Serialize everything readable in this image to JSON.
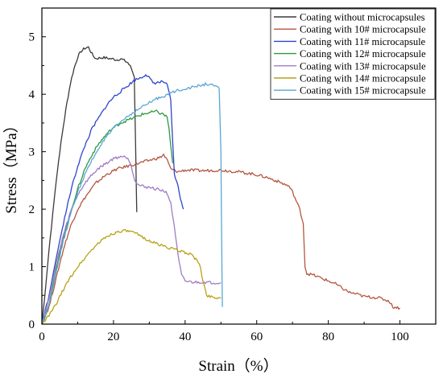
{
  "chart_data": {
    "type": "line",
    "title": "",
    "xlabel": "Strain（%）",
    "ylabel": "Stress（MPa）",
    "xlim": [
      0,
      110
    ],
    "ylim": [
      0,
      5.5
    ],
    "xticks": [
      "0",
      "20",
      "40",
      "60",
      "80",
      "100"
    ],
    "yticks": [
      "0",
      "1",
      "2",
      "3",
      "4",
      "5"
    ],
    "legend_position": "top-right",
    "grid": false,
    "series": [
      {
        "name": "Coating without microcapsules",
        "color": "#3a3a3a",
        "points": [
          [
            0,
            0
          ],
          [
            1,
            0.6
          ],
          [
            2,
            1.3
          ],
          [
            3,
            1.9
          ],
          [
            4,
            2.5
          ],
          [
            5,
            3.0
          ],
          [
            6,
            3.45
          ],
          [
            7,
            3.85
          ],
          [
            8,
            4.2
          ],
          [
            9,
            4.45
          ],
          [
            10,
            4.65
          ],
          [
            11,
            4.75
          ],
          [
            12,
            4.8
          ],
          [
            13,
            4.82
          ],
          [
            14,
            4.7
          ],
          [
            15,
            4.62
          ],
          [
            17,
            4.64
          ],
          [
            19,
            4.62
          ],
          [
            21,
            4.6
          ],
          [
            22,
            4.62
          ],
          [
            24,
            4.55
          ],
          [
            25,
            4.45
          ],
          [
            25.8,
            4.3
          ],
          [
            26.2,
            3.0
          ],
          [
            26.5,
            1.95
          ]
        ]
      },
      {
        "name": "Coating with 10# microcapsule",
        "color": "#b5563e",
        "points": [
          [
            0,
            0
          ],
          [
            2,
            0.3
          ],
          [
            4,
            0.8
          ],
          [
            6,
            1.3
          ],
          [
            8,
            1.7
          ],
          [
            10,
            2.0
          ],
          [
            12,
            2.2
          ],
          [
            15,
            2.45
          ],
          [
            18,
            2.6
          ],
          [
            21,
            2.7
          ],
          [
            24,
            2.75
          ],
          [
            27,
            2.8
          ],
          [
            30,
            2.85
          ],
          [
            33,
            2.9
          ],
          [
            34,
            2.95
          ],
          [
            35,
            2.85
          ],
          [
            36,
            2.7
          ],
          [
            38,
            2.65
          ],
          [
            40,
            2.68
          ],
          [
            45,
            2.67
          ],
          [
            50,
            2.68
          ],
          [
            55,
            2.65
          ],
          [
            60,
            2.6
          ],
          [
            63,
            2.55
          ],
          [
            66,
            2.48
          ],
          [
            69,
            2.4
          ],
          [
            70,
            2.3
          ],
          [
            72,
            2.0
          ],
          [
            73,
            1.75
          ],
          [
            73.5,
            1.0
          ],
          [
            74,
            0.88
          ],
          [
            76,
            0.85
          ],
          [
            78,
            0.8
          ],
          [
            80,
            0.75
          ],
          [
            82,
            0.7
          ],
          [
            84,
            0.62
          ],
          [
            86,
            0.55
          ],
          [
            88,
            0.52
          ],
          [
            90,
            0.48
          ],
          [
            94,
            0.46
          ],
          [
            97,
            0.4
          ],
          [
            98,
            0.3
          ],
          [
            100,
            0.28
          ]
        ]
      },
      {
        "name": "Coating with 11# microcapsule",
        "color": "#2f45cc",
        "points": [
          [
            0,
            0
          ],
          [
            2,
            0.5
          ],
          [
            4,
            1.15
          ],
          [
            6,
            1.75
          ],
          [
            8,
            2.3
          ],
          [
            10,
            2.75
          ],
          [
            12,
            3.1
          ],
          [
            14,
            3.4
          ],
          [
            16,
            3.6
          ],
          [
            18,
            3.8
          ],
          [
            20,
            3.95
          ],
          [
            22,
            4.05
          ],
          [
            24,
            4.15
          ],
          [
            26,
            4.25
          ],
          [
            28,
            4.3
          ],
          [
            29,
            4.35
          ],
          [
            30,
            4.28
          ],
          [
            31,
            4.2
          ],
          [
            32,
            4.2
          ],
          [
            34,
            4.22
          ],
          [
            35,
            4.15
          ],
          [
            36,
            3.9
          ],
          [
            36.5,
            3.2
          ],
          [
            37,
            2.6
          ],
          [
            38,
            2.4
          ],
          [
            39,
            2.1
          ],
          [
            39.5,
            2.0
          ]
        ]
      },
      {
        "name": "Coating with 12# microcapsule",
        "color": "#2d9a3d",
        "points": [
          [
            0,
            0
          ],
          [
            2,
            0.35
          ],
          [
            4,
            0.95
          ],
          [
            6,
            1.5
          ],
          [
            8,
            1.95
          ],
          [
            10,
            2.35
          ],
          [
            12,
            2.7
          ],
          [
            14,
            2.95
          ],
          [
            16,
            3.15
          ],
          [
            18,
            3.3
          ],
          [
            20,
            3.42
          ],
          [
            22,
            3.5
          ],
          [
            24,
            3.55
          ],
          [
            26,
            3.6
          ],
          [
            28,
            3.65
          ],
          [
            30,
            3.68
          ],
          [
            32,
            3.7
          ],
          [
            33,
            3.67
          ],
          [
            34,
            3.65
          ],
          [
            35,
            3.6
          ],
          [
            35.5,
            3.4
          ],
          [
            36,
            3.1
          ],
          [
            36.5,
            2.8
          ]
        ]
      },
      {
        "name": "Coating with 13# microcapsule",
        "color": "#a07cc4",
        "points": [
          [
            0,
            0
          ],
          [
            2,
            0.45
          ],
          [
            4,
            1.05
          ],
          [
            6,
            1.55
          ],
          [
            8,
            1.95
          ],
          [
            10,
            2.25
          ],
          [
            12,
            2.45
          ],
          [
            14,
            2.6
          ],
          [
            16,
            2.72
          ],
          [
            18,
            2.8
          ],
          [
            20,
            2.88
          ],
          [
            22,
            2.92
          ],
          [
            24,
            2.9
          ],
          [
            25,
            2.75
          ],
          [
            26,
            2.5
          ],
          [
            27,
            2.42
          ],
          [
            28,
            2.4
          ],
          [
            30,
            2.38
          ],
          [
            32,
            2.35
          ],
          [
            34,
            2.32
          ],
          [
            35,
            2.28
          ],
          [
            36,
            2.1
          ],
          [
            37,
            1.7
          ],
          [
            38,
            1.2
          ],
          [
            39,
            0.85
          ],
          [
            40,
            0.75
          ],
          [
            42,
            0.73
          ],
          [
            45,
            0.73
          ],
          [
            48,
            0.72
          ],
          [
            50,
            0.72
          ]
        ]
      },
      {
        "name": "Coating with 14# microcapsule",
        "color": "#b9a116",
        "points": [
          [
            0,
            0
          ],
          [
            2,
            0.15
          ],
          [
            4,
            0.35
          ],
          [
            6,
            0.6
          ],
          [
            8,
            0.82
          ],
          [
            10,
            1.0
          ],
          [
            12,
            1.15
          ],
          [
            14,
            1.3
          ],
          [
            16,
            1.42
          ],
          [
            18,
            1.52
          ],
          [
            20,
            1.58
          ],
          [
            22,
            1.62
          ],
          [
            24,
            1.62
          ],
          [
            26,
            1.58
          ],
          [
            28,
            1.52
          ],
          [
            30,
            1.45
          ],
          [
            32,
            1.4
          ],
          [
            34,
            1.36
          ],
          [
            36,
            1.32
          ],
          [
            38,
            1.28
          ],
          [
            40,
            1.25
          ],
          [
            42,
            1.2
          ],
          [
            44,
            1.05
          ],
          [
            45,
            0.75
          ],
          [
            46,
            0.5
          ],
          [
            48,
            0.47
          ],
          [
            50,
            0.45
          ]
        ]
      },
      {
        "name": "Coating with 15# microcapsule",
        "color": "#5aa6d6",
        "points": [
          [
            0,
            0
          ],
          [
            2,
            0.35
          ],
          [
            4,
            0.9
          ],
          [
            6,
            1.45
          ],
          [
            8,
            1.9
          ],
          [
            10,
            2.3
          ],
          [
            12,
            2.6
          ],
          [
            14,
            2.85
          ],
          [
            16,
            3.08
          ],
          [
            18,
            3.25
          ],
          [
            20,
            3.4
          ],
          [
            22,
            3.52
          ],
          [
            24,
            3.62
          ],
          [
            26,
            3.7
          ],
          [
            28,
            3.78
          ],
          [
            30,
            3.85
          ],
          [
            32,
            3.92
          ],
          [
            34,
            3.97
          ],
          [
            36,
            4.02
          ],
          [
            38,
            4.07
          ],
          [
            40,
            4.1
          ],
          [
            42,
            4.12
          ],
          [
            44,
            4.15
          ],
          [
            46,
            4.18
          ],
          [
            48,
            4.15
          ],
          [
            49.5,
            4.1
          ],
          [
            50,
            3.0
          ],
          [
            50.2,
            1.5
          ],
          [
            50.4,
            0.3
          ]
        ]
      }
    ]
  }
}
